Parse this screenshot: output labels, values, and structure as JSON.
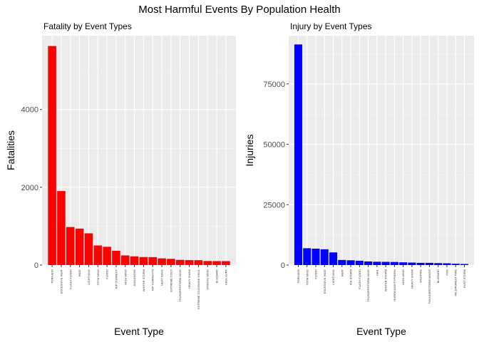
{
  "figure": {
    "title": "Most Harmful Events By Population Health"
  },
  "colors": {
    "panel_bg": "#ebebeb",
    "fatality_bar": "#ff0000",
    "injury_bar": "#0000ff"
  },
  "chart_data": [
    {
      "type": "bar",
      "title": "Fatality by Event Types",
      "xlabel": "Event Type",
      "ylabel": "Fatalities",
      "ylim": [
        0,
        5900
      ],
      "yticks": [
        0,
        2000,
        4000
      ],
      "ytick_labels": [
        "0",
        "2000",
        "4000"
      ],
      "color": "#ff0000",
      "categories": [
        "TORNADO",
        "EXCESSIVE HEAT",
        "FLASH FLOOD",
        "HEAT",
        "LIGHTNING",
        "TSTM WIND",
        "FLOOD",
        "RIP CURRENT",
        "HIGH WIND",
        "AVALANCHE",
        "WINTER STORM",
        "RIP CURRENTS",
        "HEAT WAVE",
        "EXTREME COLD",
        "THUNDERSTORM WIND",
        "HEAVY SNOW",
        "EXTREME COLD/WIND CHILL",
        "STRONG WIND",
        "BLIZZARD",
        "HIGH SURF"
      ],
      "values": [
        5633,
        1903,
        978,
        937,
        816,
        504,
        470,
        368,
        248,
        224,
        206,
        204,
        172,
        160,
        133,
        127,
        125,
        103,
        101,
        101
      ]
    },
    {
      "type": "bar",
      "title": "Injury by Event Types",
      "xlabel": "Event Type",
      "ylabel": "Injuries",
      "ylim": [
        0,
        95000
      ],
      "yticks": [
        0,
        25000,
        50000,
        75000
      ],
      "ytick_labels": [
        "0",
        "25000",
        "50000",
        "75000"
      ],
      "color": "#0000ff",
      "categories": [
        "TORNADO",
        "TSTM WIND",
        "FLOOD",
        "EXCESSIVE HEAT",
        "LIGHTNING",
        "HEAT",
        "ICE STORM",
        "FLASH FLOOD",
        "THUNDERSTORM WIND",
        "HAIL",
        "WINTER STORM",
        "HURRICANE/TYPHOON",
        "HIGH WIND",
        "HEAVY SNOW",
        "WILDFIRE",
        "THUNDERSTORM WINDS",
        "BLIZZARD",
        "FOG",
        "WILD/FOREST FIRE",
        "DUST STORM"
      ],
      "values": [
        91346,
        6957,
        6789,
        6525,
        5230,
        2100,
        1975,
        1777,
        1488,
        1361,
        1321,
        1275,
        1137,
        1021,
        911,
        908,
        805,
        734,
        545,
        440
      ]
    }
  ]
}
